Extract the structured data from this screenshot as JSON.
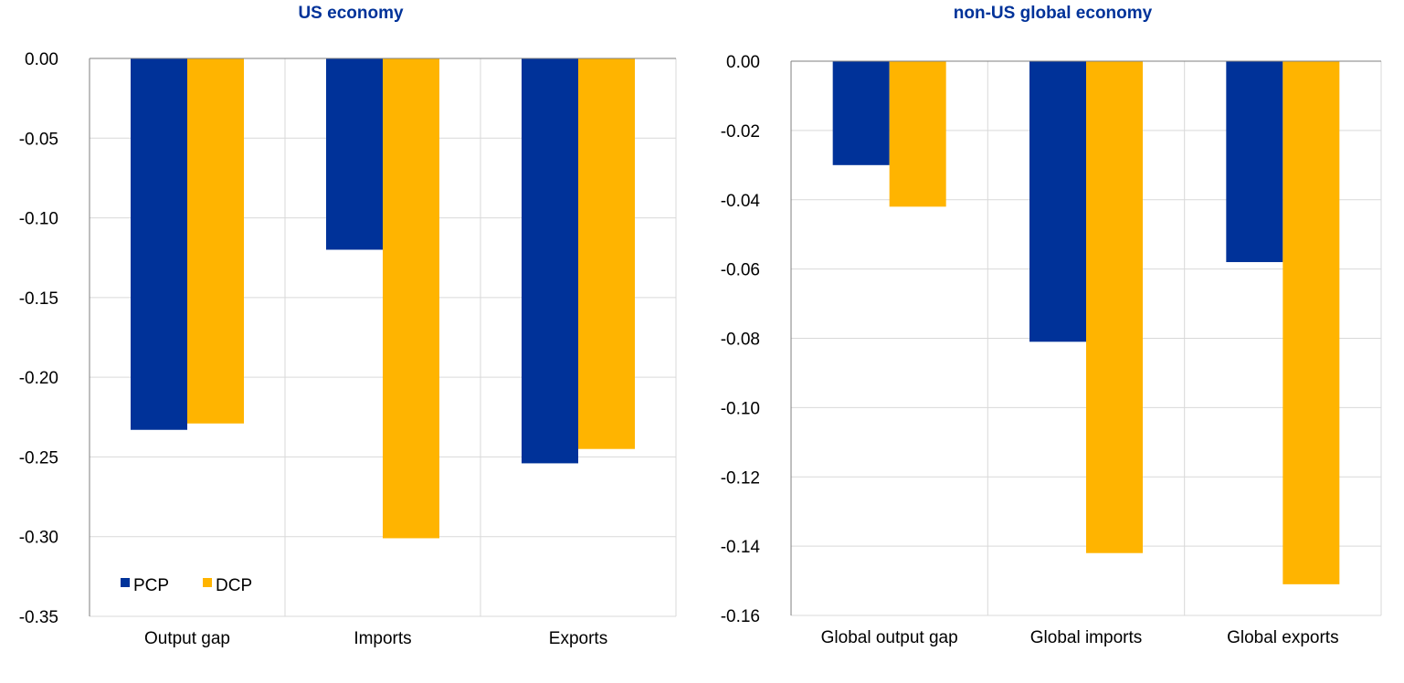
{
  "colors": {
    "PCP": "#003299",
    "DCP": "#FFB400",
    "title": "#003299",
    "grid": "#d9d9d9",
    "axis": "#7f7f7f"
  },
  "legend": {
    "placement": "bottom-left",
    "items": [
      "PCP",
      "DCP"
    ]
  },
  "chart_data": [
    {
      "type": "bar",
      "title": "US economy",
      "categories": [
        "Output gap",
        "Imports",
        "Exports"
      ],
      "series": [
        {
          "name": "PCP",
          "values": [
            -0.233,
            -0.12,
            -0.254
          ]
        },
        {
          "name": "DCP",
          "values": [
            -0.229,
            -0.301,
            -0.245
          ]
        }
      ],
      "ylim": [
        -0.35,
        0.0
      ],
      "yticks": [
        "0.00",
        "-0.05",
        "-0.10",
        "-0.15",
        "-0.20",
        "-0.25",
        "-0.30",
        "-0.35"
      ],
      "grid": true,
      "legend": "bottom-left"
    },
    {
      "type": "bar",
      "title": "non-US global economy",
      "categories": [
        "Global output gap",
        "Global imports",
        "Global exports"
      ],
      "series": [
        {
          "name": "PCP",
          "values": [
            -0.03,
            -0.081,
            -0.058
          ]
        },
        {
          "name": "DCP",
          "values": [
            -0.042,
            -0.142,
            -0.151
          ]
        }
      ],
      "ylim": [
        -0.16,
        0.0
      ],
      "yticks": [
        "0.00",
        "-0.02",
        "-0.04",
        "-0.06",
        "-0.08",
        "-0.10",
        "-0.12",
        "-0.14",
        "-0.16"
      ],
      "grid": true,
      "legend": "none"
    }
  ]
}
